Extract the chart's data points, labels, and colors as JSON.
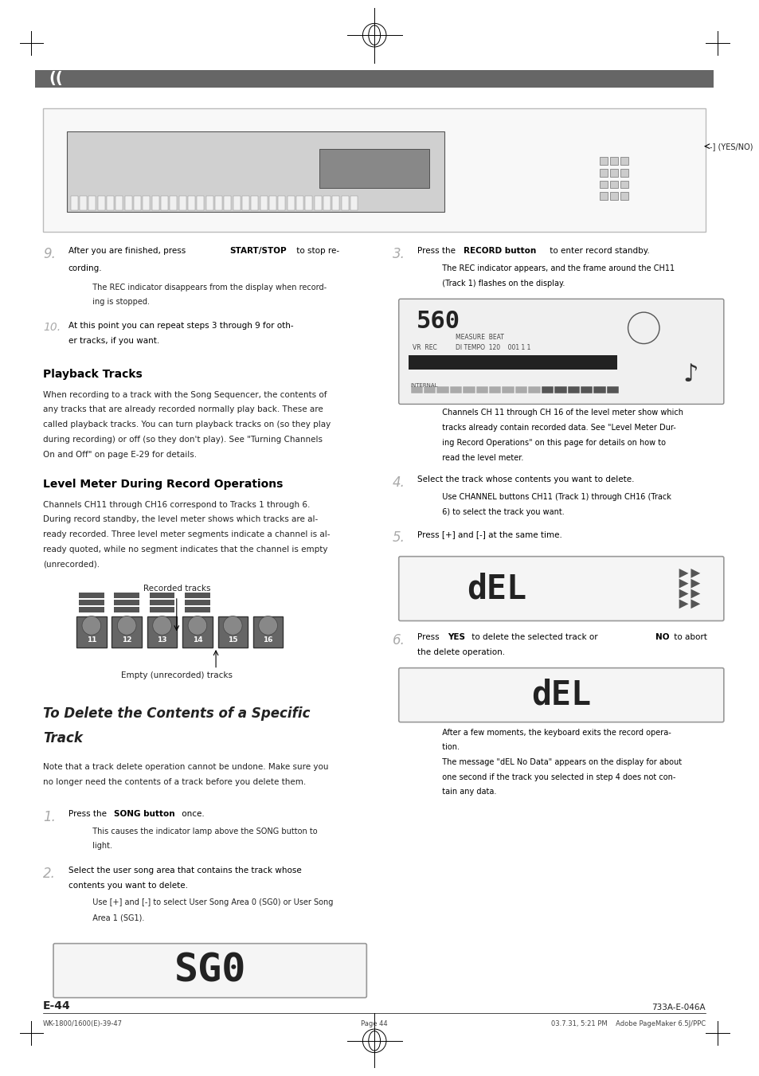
{
  "page_bg": "#ffffff",
  "page_width": 9.54,
  "page_height": 13.51,
  "footer_left": "E-44",
  "footer_right": "733A-E-046A",
  "footer_bottom_left": "WK-1800/1600(E)-39-47",
  "footer_bottom_center": "Page 44",
  "footer_bottom_right": "03.7.31, 5:21 PM    Adobe PageMaker 6.5J/PPC"
}
